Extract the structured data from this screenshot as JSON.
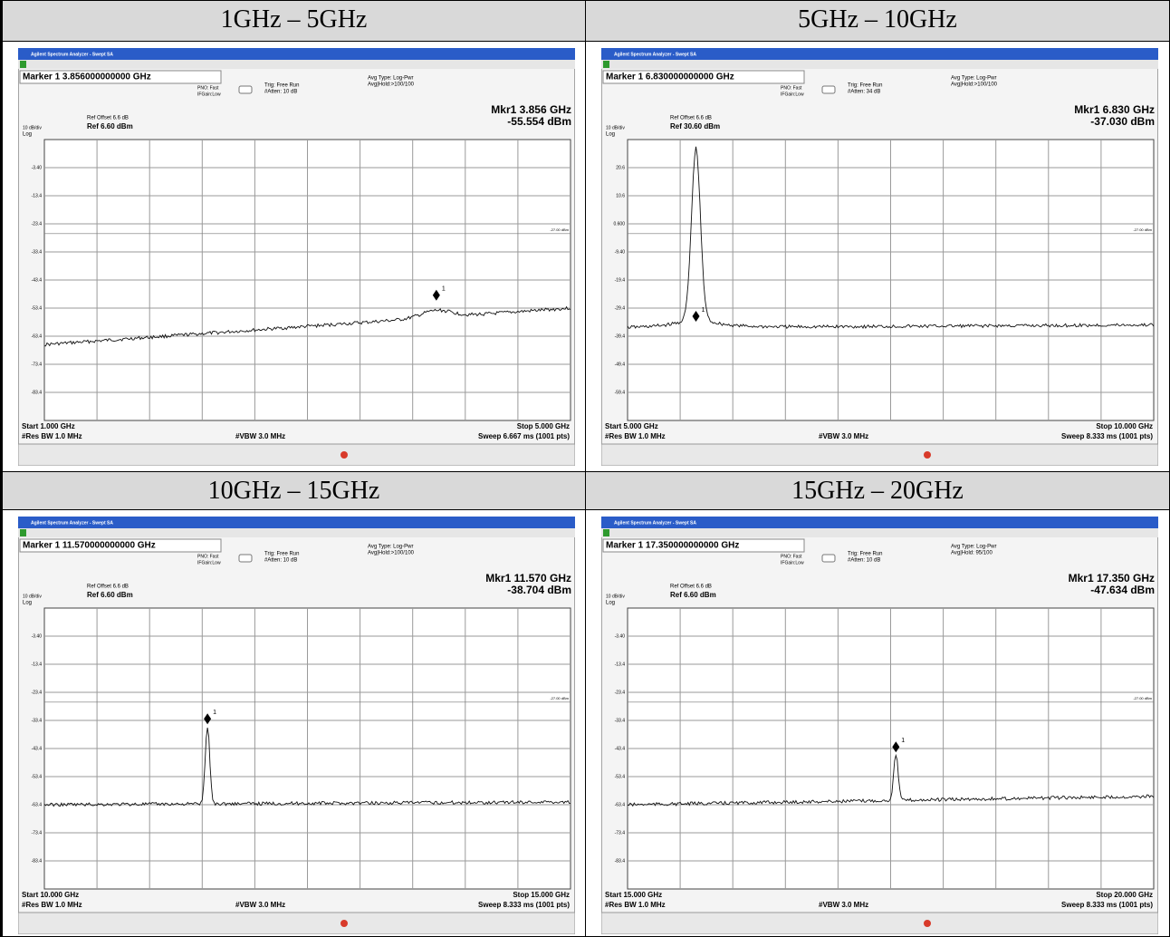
{
  "app_title": "Agilent Spectrum Analyzer - Swept SA",
  "marker_number": "1",
  "panels": [
    {
      "header": "1GHz – 5GHz",
      "marker": "Marker 1 3.856000000000 GHz",
      "pno": "PNO: Fast",
      "ifgain": "IFGain:Low",
      "trig": "Trig: Free Run",
      "atten": "#Atten: 10 dB",
      "avg_type": "Avg Type: Log-Pwr",
      "avg_hold": "Avg|Hold:>100/100",
      "ref_offset": "Ref Offset 6.6 dB",
      "ref": "Ref 6.60 dBm",
      "scale": "10 dB/div",
      "log": "Log",
      "mkr_freq": "Mkr1 3.856 GHz",
      "mkr_level": "-55.554 dBm",
      "yticks": [
        "-3.40",
        "-13.4",
        "-23.4",
        "-33.4",
        "-43.4",
        "-53.4",
        "-63.4",
        "-73.4",
        "-83.4"
      ],
      "display_line": "-27.00 dBm",
      "start": "Start 1.000 GHz",
      "res_bw": "#Res BW 1.0 MHz",
      "vbw": "#VBW 3.0 MHz",
      "stop": "Stop 5.000 GHz",
      "sweep": "Sweep  6.667 ms (1001 pts)"
    },
    {
      "header": "5GHz – 10GHz",
      "marker": "Marker 1 6.830000000000 GHz",
      "pno": "PNO: Fast",
      "ifgain": "IFGain:Low",
      "trig": "Trig: Free Run",
      "atten": "#Atten: 34 dB",
      "avg_type": "Avg Type: Log-Pwr",
      "avg_hold": "Avg|Hold:>100/100",
      "ref_offset": "Ref Offset 6.6 dB",
      "ref": "Ref 30.60 dBm",
      "scale": "10 dB/div",
      "log": "Log",
      "mkr_freq": "Mkr1 6.830 GHz",
      "mkr_level": "-37.030 dBm",
      "yticks": [
        "20.6",
        "10.6",
        "0.600",
        "-9.40",
        "-19.4",
        "-29.4",
        "-39.4",
        "-49.4",
        "-59.4"
      ],
      "display_line": "-27.00 dBm",
      "start": "Start 5.000 GHz",
      "res_bw": "#Res BW 1.0 MHz",
      "vbw": "#VBW 3.0 MHz",
      "stop": "Stop 10.000 GHz",
      "sweep": "Sweep  8.333 ms (1001 pts)"
    },
    {
      "header": "10GHz – 15GHz",
      "marker": "Marker 1 11.570000000000 GHz",
      "pno": "PNO: Fast",
      "ifgain": "IFGain:Low",
      "trig": "Trig: Free Run",
      "atten": "#Atten: 10 dB",
      "avg_type": "Avg Type: Log-Pwr",
      "avg_hold": "Avg|Hold:>100/100",
      "ref_offset": "Ref Offset 6.6 dB",
      "ref": "Ref 6.60 dBm",
      "scale": "10 dB/div",
      "log": "Log",
      "mkr_freq": "Mkr1 11.570 GHz",
      "mkr_level": "-38.704 dBm",
      "yticks": [
        "-3.40",
        "-13.4",
        "-23.4",
        "-33.4",
        "-43.4",
        "-53.4",
        "-63.4",
        "-73.4",
        "-83.4"
      ],
      "display_line": "-27.00 dBm",
      "start": "Start 10.000 GHz",
      "res_bw": "#Res BW 1.0 MHz",
      "vbw": "#VBW 3.0 MHz",
      "stop": "Stop 15.000 GHz",
      "sweep": "Sweep  8.333 ms (1001 pts)"
    },
    {
      "header": "15GHz – 20GHz",
      "marker": "Marker 1 17.350000000000 GHz",
      "pno": "PNO: Fast",
      "ifgain": "IFGain:Low",
      "trig": "Trig: Free Run",
      "atten": "#Atten: 10 dB",
      "avg_type": "Avg Type: Log-Pwr",
      "avg_hold": "Avg|Hold: 95/100",
      "ref_offset": "Ref Offset 6.6 dB",
      "ref": "Ref 6.60 dBm",
      "scale": "10 dB/div",
      "log": "Log",
      "mkr_freq": "Mkr1 17.350 GHz",
      "mkr_level": "-47.634 dBm",
      "yticks": [
        "-3.40",
        "-13.4",
        "-23.4",
        "-33.4",
        "-43.4",
        "-53.4",
        "-63.4",
        "-73.4",
        "-83.4"
      ],
      "display_line": "-27.00 dBm",
      "start": "Start 15.000 GHz",
      "res_bw": "#Res BW 1.0 MHz",
      "vbw": "#VBW 3.0 MHz",
      "stop": "Stop 20.000 GHz",
      "sweep": "Sweep  8.333 ms (1001 pts)"
    }
  ]
}
